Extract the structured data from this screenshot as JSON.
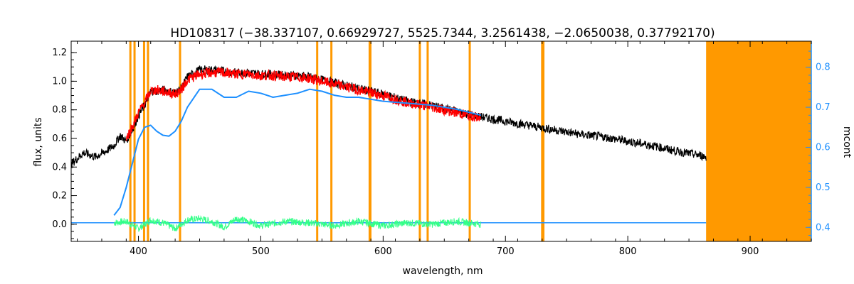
{
  "chart_data": {
    "type": "line",
    "title": "HD108317    (−38.337107, 0.66929727, 5525.7344, 3.2561438, −2.0650038, 0.37792170)",
    "xlabel": "wavelength, nm",
    "ylabel": "flux, units",
    "y2label": "mcont",
    "xlim": [
      345,
      950
    ],
    "ylim": [
      -0.12,
      1.28
    ],
    "y2lim": [
      0.365,
      0.865
    ],
    "xticks": [
      400,
      500,
      600,
      700,
      800,
      900
    ],
    "yticks": [
      0.0,
      0.2,
      0.4,
      0.6,
      0.8,
      1.0,
      1.2
    ],
    "y2ticks": [
      0.4,
      0.5,
      0.6,
      0.7,
      0.8
    ],
    "xtick_labels": [
      "400",
      "500",
      "600",
      "700",
      "800",
      "900"
    ],
    "ytick_labels": [
      "0.0",
      "0.2",
      "0.4",
      "0.6",
      "0.8",
      "1.0",
      "1.2"
    ],
    "y2tick_labels": [
      "0.4",
      "0.5",
      "0.6",
      "0.7",
      "0.8"
    ],
    "colors": {
      "observed": "#000000",
      "model": "#ff0000",
      "continuum": "#1e90ff",
      "residual": "#33ff88",
      "masked": "#ff9900",
      "axis_right": "#1e90ff"
    },
    "masked_lines_nm": [
      393.4,
      396.8,
      404.6,
      407.8,
      434.0,
      546.1,
      557.7,
      589.0,
      589.6,
      630.0,
      636.4,
      670.8,
      730.0,
      731.0
    ],
    "masked_region_nm": [
      864,
      950
    ],
    "series": [
      {
        "key": "observed",
        "x": [
          345,
          355,
          365,
          375,
          380,
          385,
          390,
          395,
          400,
          405,
          410,
          415,
          420,
          425,
          430,
          435,
          440,
          450,
          460,
          470,
          480,
          490,
          500,
          510,
          520,
          530,
          540,
          550,
          560,
          570,
          580,
          590,
          600,
          620,
          640,
          660,
          680,
          700,
          720,
          740,
          760,
          780,
          800,
          820,
          840,
          860,
          864
        ],
        "y": [
          0.42,
          0.5,
          0.47,
          0.52,
          0.55,
          0.62,
          0.58,
          0.66,
          0.76,
          0.83,
          0.93,
          0.93,
          0.94,
          0.93,
          0.92,
          0.95,
          1.03,
          1.08,
          1.08,
          1.07,
          1.06,
          1.06,
          1.05,
          1.05,
          1.04,
          1.04,
          1.03,
          1.01,
          0.99,
          0.97,
          0.95,
          0.93,
          0.91,
          0.86,
          0.83,
          0.79,
          0.75,
          0.72,
          0.69,
          0.66,
          0.63,
          0.61,
          0.58,
          0.55,
          0.51,
          0.48,
          0.47
        ]
      },
      {
        "key": "model",
        "x": [
          390,
          395,
          400,
          405,
          410,
          415,
          420,
          425,
          430,
          435,
          440,
          450,
          460,
          470,
          480,
          490,
          500,
          510,
          520,
          530,
          540,
          550,
          560,
          570,
          580,
          590,
          600,
          620,
          640,
          660,
          680
        ],
        "y": [
          0.6,
          0.68,
          0.78,
          0.85,
          0.93,
          0.94,
          0.93,
          0.92,
          0.91,
          0.94,
          1.01,
          1.05,
          1.06,
          1.06,
          1.05,
          1.05,
          1.04,
          1.04,
          1.03,
          1.03,
          1.02,
          1.0,
          0.98,
          0.96,
          0.94,
          0.92,
          0.9,
          0.85,
          0.82,
          0.78,
          0.74
        ]
      },
      {
        "key": "continuum",
        "axis": "right",
        "x": [
          380,
          385,
          390,
          395,
          400,
          405,
          410,
          415,
          420,
          425,
          430,
          435,
          440,
          450,
          460,
          470,
          480,
          490,
          500,
          510,
          520,
          530,
          540,
          550,
          560,
          570,
          580,
          590,
          600,
          620,
          640,
          660,
          680
        ],
        "y": [
          0.43,
          0.45,
          0.5,
          0.56,
          0.62,
          0.65,
          0.655,
          0.64,
          0.63,
          0.628,
          0.64,
          0.665,
          0.7,
          0.745,
          0.745,
          0.725,
          0.725,
          0.74,
          0.735,
          0.725,
          0.73,
          0.735,
          0.745,
          0.74,
          0.73,
          0.725,
          0.725,
          0.72,
          0.715,
          0.71,
          0.705,
          0.695,
          0.68
        ]
      },
      {
        "key": "residual",
        "x": [
          380,
          390,
          400,
          410,
          420,
          430,
          440,
          450,
          460,
          470,
          480,
          490,
          500,
          520,
          540,
          560,
          580,
          600,
          620,
          640,
          660,
          680
        ],
        "y": [
          0.01,
          0.02,
          -0.03,
          0.03,
          0.01,
          -0.03,
          0.03,
          0.04,
          0.02,
          -0.02,
          0.04,
          0.02,
          -0.01,
          0.02,
          0.01,
          -0.01,
          0.02,
          -0.01,
          0.01,
          0.0,
          0.02,
          0.0
        ]
      },
      {
        "key": "zero_level",
        "x": [
          345,
          864
        ],
        "y": [
          0.01,
          0.01
        ]
      }
    ]
  }
}
